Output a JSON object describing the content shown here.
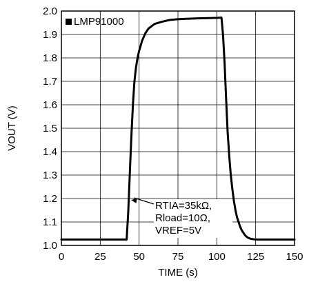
{
  "chart_data": {
    "type": "line",
    "xlabel": "TIME (s)",
    "ylabel": "VOUT (V)",
    "xlim": [
      0,
      150
    ],
    "ylim": [
      1.0,
      2.0
    ],
    "xticks": [
      0,
      25,
      50,
      75,
      100,
      125,
      150
    ],
    "yticks": [
      1.0,
      1.1,
      1.2,
      1.3,
      1.4,
      1.5,
      1.6,
      1.7,
      1.8,
      1.9,
      2.0
    ],
    "grid": true,
    "legend": {
      "placement": "top-left",
      "label": "LMP91000"
    },
    "series": [
      {
        "name": "LMP91000",
        "color": "#000000",
        "x": [
          0,
          42,
          43,
          44,
          45,
          46,
          47,
          48,
          49,
          50,
          52,
          54,
          56,
          58,
          60,
          65,
          70,
          75,
          80,
          85,
          90,
          95,
          100,
          103,
          104,
          105,
          106,
          107,
          108,
          109,
          110,
          111,
          112,
          113,
          114,
          115,
          116,
          117,
          118,
          119,
          120,
          122,
          124,
          126,
          150
        ],
        "y": [
          1.025,
          1.025,
          1.14,
          1.3,
          1.46,
          1.6,
          1.7,
          1.76,
          1.8,
          1.83,
          1.875,
          1.905,
          1.925,
          1.935,
          1.945,
          1.955,
          1.962,
          1.965,
          1.967,
          1.968,
          1.969,
          1.97,
          1.971,
          1.972,
          1.9,
          1.78,
          1.62,
          1.48,
          1.38,
          1.3,
          1.24,
          1.19,
          1.15,
          1.12,
          1.1,
          1.08,
          1.065,
          1.055,
          1.045,
          1.038,
          1.033,
          1.028,
          1.026,
          1.025,
          1.025
        ]
      }
    ],
    "annotation": {
      "lines": [
        "RTIA=35kΩ,",
        "Rload=10Ω,",
        "VREF=5V"
      ],
      "target": {
        "x": 44,
        "y": 1.2
      }
    }
  }
}
